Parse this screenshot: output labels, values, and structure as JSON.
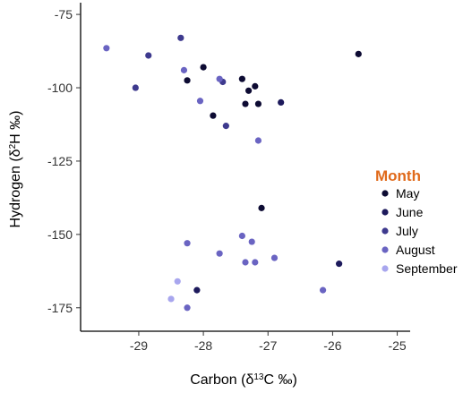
{
  "chart_data": {
    "type": "scatter",
    "xlabel": {
      "prefix": "Carbon (δ",
      "sup": "13",
      "suffix": "C ‰)"
    },
    "ylabel": {
      "prefix": "Hydrogen (δ",
      "sup": "2",
      "suffix": "H ‰)"
    },
    "xlim": [
      -29.9,
      -24.8
    ],
    "ylim": [
      -183,
      -71
    ],
    "xticks": [
      -29,
      -28,
      -27,
      -26,
      -25
    ],
    "yticks": [
      -75,
      -100,
      -125,
      -150,
      -175
    ],
    "grid": false,
    "legend": {
      "title": "Month",
      "title_color": "#e06a1b",
      "placement": "right"
    },
    "series": [
      {
        "name": "May",
        "color": "#0d0b33",
        "points": [
          [
            -28.0,
            -93
          ],
          [
            -28.25,
            -97.5
          ],
          [
            -27.85,
            -109.5
          ],
          [
            -27.4,
            -97
          ],
          [
            -27.3,
            -101
          ],
          [
            -27.2,
            -99.5
          ],
          [
            -27.35,
            -105.5
          ],
          [
            -27.15,
            -105.5
          ],
          [
            -27.1,
            -141
          ],
          [
            -25.6,
            -88.5
          ]
        ]
      },
      {
        "name": "June",
        "color": "#1d1a5c",
        "points": [
          [
            -28.1,
            -169
          ],
          [
            -26.8,
            -105
          ],
          [
            -25.9,
            -160
          ]
        ]
      },
      {
        "name": "July",
        "color": "#3e3a8e",
        "points": [
          [
            -28.35,
            -83
          ],
          [
            -28.85,
            -89
          ],
          [
            -29.05,
            -100
          ],
          [
            -27.7,
            -98
          ],
          [
            -27.65,
            -113
          ]
        ]
      },
      {
        "name": "August",
        "color": "#6a64c2",
        "points": [
          [
            -29.5,
            -86.5
          ],
          [
            -28.3,
            -94
          ],
          [
            -27.75,
            -97
          ],
          [
            -28.05,
            -104.5
          ],
          [
            -27.15,
            -118
          ],
          [
            -28.25,
            -153
          ],
          [
            -27.75,
            -156.5
          ],
          [
            -27.4,
            -150.5
          ],
          [
            -27.25,
            -152.5
          ],
          [
            -27.35,
            -159.5
          ],
          [
            -27.2,
            -159.5
          ],
          [
            -26.9,
            -158
          ],
          [
            -26.15,
            -169
          ],
          [
            -28.25,
            -175
          ]
        ]
      },
      {
        "name": "September",
        "color": "#a8a6ee",
        "points": [
          [
            -28.4,
            -166
          ],
          [
            -28.5,
            -172
          ]
        ]
      }
    ]
  }
}
